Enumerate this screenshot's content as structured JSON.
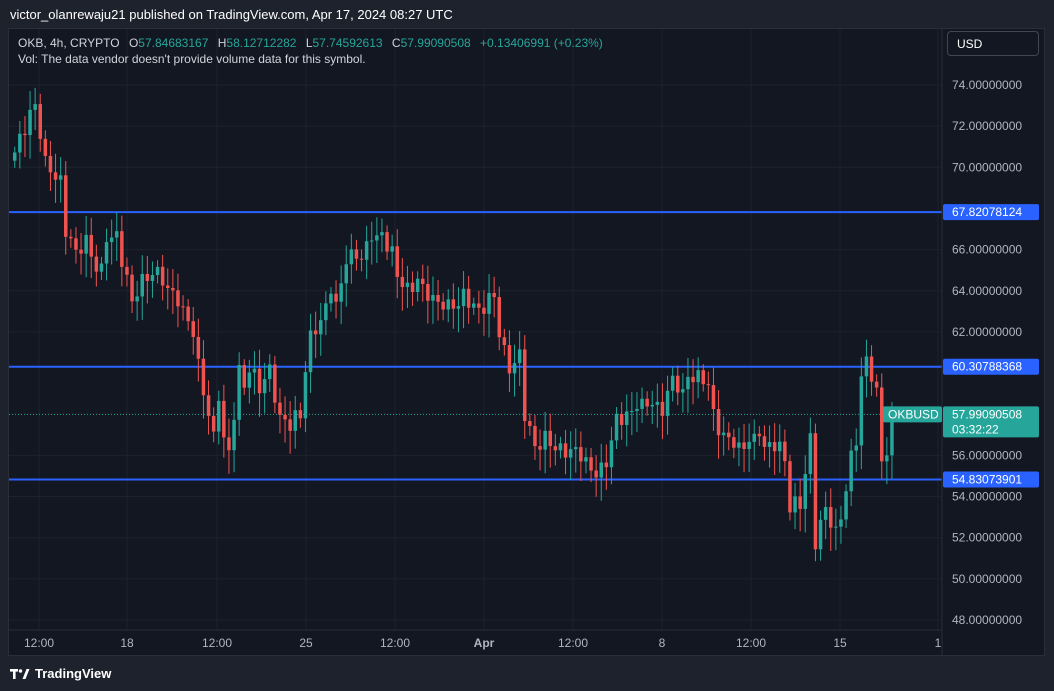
{
  "header": {
    "published": "victor_olanrewaju21 published on TradingView.com, Apr 17, 2024 08:27 UTC"
  },
  "legend": {
    "symbol": "OKB, 4h, CRYPTO",
    "o_label": "O",
    "o_value": "57.84683167",
    "h_label": "H",
    "h_value": "58.12712282",
    "l_label": "L",
    "l_value": "57.74592613",
    "c_label": "C",
    "c_value": "57.99090508",
    "change": "+0.13406991 (+0.23%)",
    "vol_note": "Vol: The data vendor doesn't provide volume data for this symbol."
  },
  "currency_button": "USD",
  "footer": {
    "brand": "TradingView"
  },
  "colors": {
    "up": "#26a69a",
    "down": "#ef5350",
    "level_line": "#2962ff",
    "background": "#131722",
    "grid": "#1e222d",
    "text": "#b2b5be"
  },
  "icons": {
    "brand_logo": "tradingview-logo-icon"
  },
  "chart_data": {
    "type": "candlestick",
    "title": "OKB, 4h, CRYPTO",
    "ylim": [
      47.5,
      75.6
    ],
    "y_ticks": [
      "74.00000000",
      "72.00000000",
      "70.00000000",
      "66.00000000",
      "64.00000000",
      "62.00000000",
      "56.00000000",
      "54.00000000",
      "52.00000000",
      "50.00000000",
      "48.00000000"
    ],
    "x_ticks": [
      "12:00",
      "18",
      "12:00",
      "25",
      "12:00",
      "Apr",
      "12:00",
      "8",
      "12:00",
      "15",
      "1"
    ],
    "levels": [
      {
        "label": "67.82078124",
        "value": 67.82
      },
      {
        "label": "60.30788368",
        "value": 60.31
      },
      {
        "label": "54.83073901",
        "value": 54.83
      }
    ],
    "price_tag": {
      "symbol": "OKBUSD",
      "value": "57.99090508",
      "countdown": "03:32:22",
      "price": 57.99
    },
    "anchors": [
      [
        0,
        70.5
      ],
      [
        3,
        72.8
      ],
      [
        4,
        73.1
      ],
      [
        6,
        70.0
      ],
      [
        9,
        69.5
      ],
      [
        10,
        67.0
      ],
      [
        12,
        65.6
      ],
      [
        14,
        66.6
      ],
      [
        16,
        65.2
      ],
      [
        17,
        64.8
      ],
      [
        18,
        66.4
      ],
      [
        20,
        66.8
      ],
      [
        22,
        64.6
      ],
      [
        23,
        63.2
      ],
      [
        25,
        64.5
      ],
      [
        27,
        65.1
      ],
      [
        28,
        64.8
      ],
      [
        30,
        63.9
      ],
      [
        32,
        63.8
      ],
      [
        35,
        61.8
      ],
      [
        36,
        60.2
      ],
      [
        38,
        58.2
      ],
      [
        39,
        57.0
      ],
      [
        40,
        58.9
      ],
      [
        41,
        56.5
      ],
      [
        42,
        56.0
      ],
      [
        44,
        60.3
      ],
      [
        45,
        59.5
      ],
      [
        46,
        60.1
      ],
      [
        48,
        59.2
      ],
      [
        50,
        60.4
      ],
      [
        52,
        57.6
      ],
      [
        54,
        57.4
      ],
      [
        55,
        58.0
      ],
      [
        56,
        58.2
      ],
      [
        57,
        60.2
      ],
      [
        58,
        61.6
      ],
      [
        60,
        62.4
      ],
      [
        62,
        64.4
      ],
      [
        63,
        63.2
      ],
      [
        65,
        65.3
      ],
      [
        67,
        66.0
      ],
      [
        68,
        65.7
      ],
      [
        70,
        66.6
      ],
      [
        71,
        66.3
      ],
      [
        72,
        66.8
      ],
      [
        74,
        66.0
      ],
      [
        75,
        64.8
      ],
      [
        76,
        64.1
      ],
      [
        77,
        63.9
      ],
      [
        79,
        64.7
      ],
      [
        80,
        64.3
      ],
      [
        82,
        63.3
      ],
      [
        84,
        63.4
      ],
      [
        86,
        63.5
      ],
      [
        87,
        63.2
      ],
      [
        88,
        63.6
      ],
      [
        89,
        63.4
      ],
      [
        90,
        63.3
      ],
      [
        92,
        63.3
      ],
      [
        94,
        63.6
      ],
      [
        95,
        61.8
      ],
      [
        97,
        60.5
      ],
      [
        98,
        60.5
      ],
      [
        99,
        60.8
      ],
      [
        100,
        57.8
      ],
      [
        101,
        57.1
      ],
      [
        102,
        56.6
      ],
      [
        104,
        56.9
      ],
      [
        106,
        56.1
      ],
      [
        108,
        56.4
      ],
      [
        110,
        56.3
      ],
      [
        112,
        55.4
      ],
      [
        114,
        55.3
      ],
      [
        116,
        55.7
      ],
      [
        117,
        56.5
      ],
      [
        118,
        57.6
      ],
      [
        120,
        58.1
      ],
      [
        122,
        58.5
      ],
      [
        123,
        58.2
      ],
      [
        125,
        58.6
      ],
      [
        127,
        58.4
      ],
      [
        129,
        59.5
      ],
      [
        131,
        59.0
      ],
      [
        132,
        60.1
      ],
      [
        134,
        59.7
      ],
      [
        136,
        59.3
      ],
      [
        137,
        58.1
      ],
      [
        139,
        57.0
      ],
      [
        140,
        56.7
      ],
      [
        142,
        56.2
      ],
      [
        144,
        57.0
      ],
      [
        145,
        56.8
      ],
      [
        146,
        57.1
      ],
      [
        147,
        56.1
      ],
      [
        149,
        56.7
      ],
      [
        150,
        56.6
      ],
      [
        151,
        55.8
      ],
      [
        152,
        53.3
      ],
      [
        154,
        53.6
      ],
      [
        156,
        57.0
      ],
      [
        157,
        51.8
      ],
      [
        159,
        53.2
      ],
      [
        160,
        52.8
      ],
      [
        161,
        52.4
      ],
      [
        162,
        53.2
      ],
      [
        163,
        54.4
      ],
      [
        164,
        55.7
      ],
      [
        165,
        56.6
      ],
      [
        166,
        59.8
      ],
      [
        167,
        60.8
      ],
      [
        168,
        60.1
      ],
      [
        169,
        59.0
      ],
      [
        170,
        55.5
      ],
      [
        171,
        56.1
      ],
      [
        172,
        57.4
      ],
      [
        173,
        57.99
      ]
    ],
    "n_candles": 174,
    "last_ohlc": {
      "open": 57.84683167,
      "high": 58.12712282,
      "low": 57.74592613,
      "close": 57.99090508
    }
  }
}
